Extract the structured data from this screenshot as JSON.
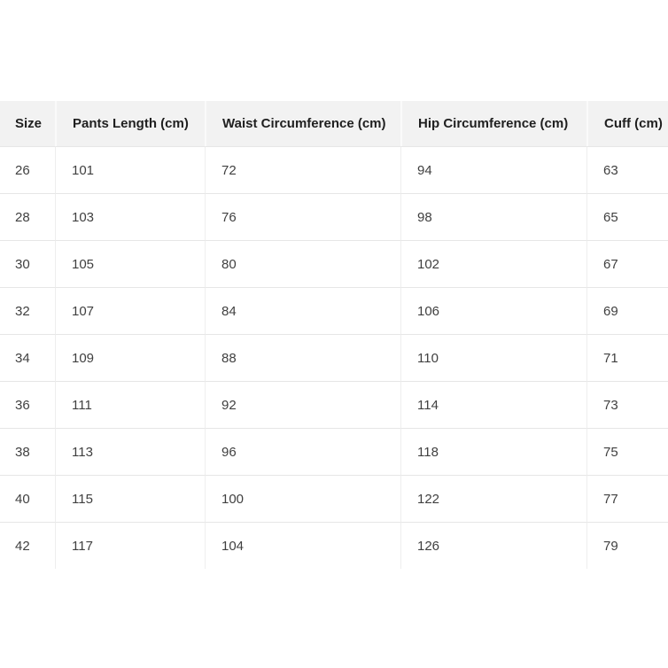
{
  "page": {
    "background": "#ffffff"
  },
  "table": {
    "title": "pants-size-chart",
    "columns": [
      "Size",
      "Pants Length (cm)",
      "Waist Circumference (cm)",
      "Hip Circumference (cm)",
      "Cuff (cm)"
    ],
    "column_keys": [
      "size",
      "pants-length",
      "waist-circumference",
      "hip-circumference",
      "cuff"
    ],
    "rows": [
      [
        "26",
        "101",
        "72",
        "94",
        "63"
      ],
      [
        "28",
        "103",
        "76",
        "98",
        "65"
      ],
      [
        "30",
        "105",
        "80",
        "102",
        "67"
      ],
      [
        "32",
        "107",
        "84",
        "106",
        "69"
      ],
      [
        "34",
        "109",
        "88",
        "110",
        "71"
      ],
      [
        "36",
        "111",
        "92",
        "114",
        "73"
      ],
      [
        "38",
        "113",
        "96",
        "118",
        "75"
      ],
      [
        "40",
        "115",
        "100",
        "122",
        "77"
      ],
      [
        "42",
        "117",
        "104",
        "126",
        "79"
      ]
    ],
    "colors": {
      "header_bg": "#f2f2f2",
      "header_text": "#1f1f1f",
      "cell_text": "#404040",
      "row_border": "#e6e6e6",
      "col_border": "#eeeeee",
      "header_divider": "#fafafa",
      "page_bg": "#ffffff"
    }
  }
}
